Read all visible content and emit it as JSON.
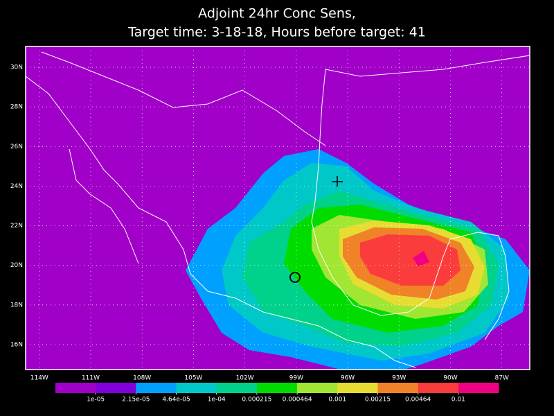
{
  "title": [
    "Adjoint 24hr Conc Sens,",
    "Target time: 3-18-18, Hours before target: 41"
  ],
  "map": {
    "xlim": [
      -114.8,
      -85.37
    ],
    "ylim": [
      14.74,
      31.05
    ],
    "xticks": [
      {
        "value": -114,
        "label": "114W"
      },
      {
        "value": -111,
        "label": "111W"
      },
      {
        "value": -108,
        "label": "108W"
      },
      {
        "value": -105,
        "label": "105W"
      },
      {
        "value": -102,
        "label": "102W"
      },
      {
        "value": -99,
        "label": "99W"
      },
      {
        "value": -96,
        "label": "96W"
      },
      {
        "value": -93,
        "label": "93W"
      },
      {
        "value": -90,
        "label": "90W"
      },
      {
        "value": -87,
        "label": "87W"
      }
    ],
    "yticks": [
      {
        "value": 16,
        "label": "16N"
      },
      {
        "value": 18,
        "label": "18N"
      },
      {
        "value": 20,
        "label": "20N"
      },
      {
        "value": 22,
        "label": "22N"
      },
      {
        "value": 24,
        "label": "24N"
      },
      {
        "value": 26,
        "label": "26N"
      },
      {
        "value": 28,
        "label": "28N"
      },
      {
        "value": 30,
        "label": "30N"
      }
    ],
    "grid": true
  },
  "colorbar": {
    "colors": [
      "#a000c8",
      "#8200dc",
      "#00a0ff",
      "#00c8c8",
      "#00d28c",
      "#00dc00",
      "#a0e632",
      "#e6dc32",
      "#f08228",
      "#fa3c3c",
      "#f00082"
    ],
    "levels": [
      {
        "value": 1e-05,
        "label": "1e-05"
      },
      {
        "value": 2.15e-05,
        "label": "2.15e-05"
      },
      {
        "value": 4.64e-05,
        "label": "4.64e-05"
      },
      {
        "value": 0.0001,
        "label": "1e-04"
      },
      0.000215,
      0.000464,
      0.001,
      0.00215,
      0.00464,
      0.01
    ]
  }
}
